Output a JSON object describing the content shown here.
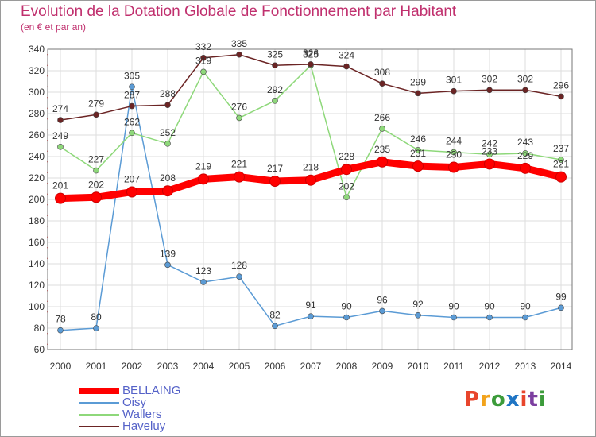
{
  "header": {
    "title": "Evolution de la Dotation Globale de Fonctionnement par Habitant",
    "subtitle": "(en € et par an)"
  },
  "logo": {
    "text": "Proxiti",
    "colors": [
      "#e8452c",
      "#f2a31c",
      "#3c9b3a",
      "#1f75c4",
      "#e8452c",
      "#7c3fa0",
      "#3c9b3a"
    ]
  },
  "chart_data": {
    "type": "line",
    "title": "Evolution de la Dotation Globale de Fonctionnement par Habitant",
    "subtitle": "(en € et par an)",
    "x": [
      2000,
      2001,
      2002,
      2003,
      2004,
      2005,
      2006,
      2007,
      2008,
      2009,
      2010,
      2011,
      2012,
      2013,
      2014
    ],
    "ylim": [
      60,
      340
    ],
    "yticks": [
      60,
      80,
      100,
      120,
      140,
      160,
      180,
      200,
      220,
      240,
      260,
      280,
      300,
      320,
      340
    ],
    "grid": true,
    "legend_position": "bottom-left",
    "series": [
      {
        "name": "BELLAING",
        "color": "#ff0000",
        "values": [
          201,
          202,
          207,
          208,
          219,
          221,
          217,
          218,
          228,
          235,
          231,
          230,
          233,
          229,
          221
        ],
        "emphasis": true
      },
      {
        "name": "Oisy",
        "color": "#5b9bd5",
        "values": [
          78,
          80,
          305,
          139,
          123,
          128,
          82,
          91,
          90,
          96,
          92,
          90,
          90,
          90,
          99
        ]
      },
      {
        "name": "Wallers",
        "color": "#8ed87a",
        "values": [
          249,
          227,
          262,
          252,
          319,
          276,
          292,
          325,
          202,
          266,
          246,
          244,
          242,
          243,
          237
        ]
      },
      {
        "name": "Haveluy",
        "color": "#6b2424",
        "values": [
          274,
          279,
          287,
          288,
          332,
          335,
          325,
          326,
          324,
          308,
          299,
          301,
          302,
          302,
          296
        ]
      }
    ]
  }
}
